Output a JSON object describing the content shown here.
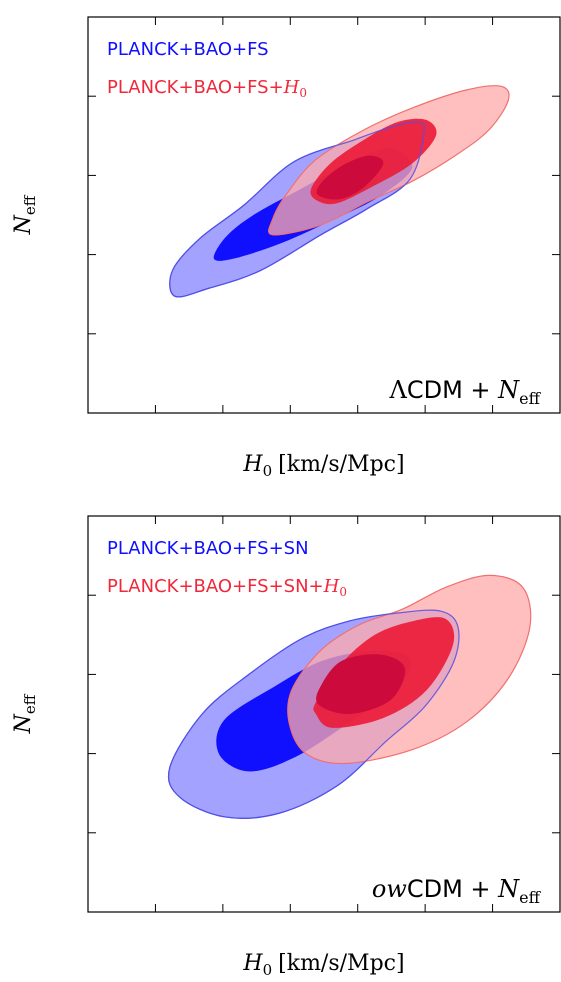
{
  "colors": {
    "blue_inner": "#1010ff",
    "blue_outer": "#a3a3ff",
    "blue_edge": "#5050e8",
    "red_inner": "#ec1c3a",
    "red_outer": "#ffaaaa",
    "red_edge": "#f07070",
    "overlap_inner": "#cc0a3c",
    "overlap_outer": "#d898b8"
  },
  "chart_data": [
    {
      "type": "contour",
      "panel": "top",
      "annotation": {
        "prefix": "Λ",
        "body": "CDM + ",
        "sym": "N",
        "sub": "eff"
      },
      "xlabel": {
        "sym": "H",
        "sub": "0",
        "unit": "[km/s/Mpc]"
      },
      "ylabel": {
        "sym": "N",
        "sub": "eff"
      },
      "xlim": [
        63.0,
        73.5
      ],
      "ylim": [
        2.0,
        4.0
      ],
      "xticks": [
        "63.0",
        "64.5",
        "66.0",
        "67.5",
        "69.0",
        "70.5",
        "72.0"
      ],
      "yticks": [
        "2.0",
        "2.4",
        "2.8",
        "3.2",
        "3.6",
        "4.0"
      ],
      "legend_placement": "top-left",
      "series": [
        {
          "name": "PLANCK+BAO+FS",
          "name_suffix": "",
          "color_key": "blue",
          "center": [
            67.68,
            3.1
          ],
          "outer_68": [
            [
              66.07,
              2.89
            ],
            [
              65.8,
              2.78
            ],
            [
              66.25,
              2.78
            ],
            [
              67.32,
              2.86
            ],
            [
              68.39,
              2.97
            ],
            [
              69.46,
              3.09
            ],
            [
              70.21,
              3.24
            ],
            [
              69.68,
              3.34
            ],
            [
              68.72,
              3.25
            ],
            [
              67.64,
              3.12
            ],
            [
              66.68,
              3.0
            ]
          ],
          "outer_95": [
            [
              64.88,
              2.72
            ],
            [
              64.93,
              2.59
            ],
            [
              65.69,
              2.63
            ],
            [
              66.84,
              2.72
            ],
            [
              68.18,
              2.9
            ],
            [
              69.2,
              3.03
            ],
            [
              70.16,
              3.18
            ],
            [
              70.48,
              3.42
            ],
            [
              70.32,
              3.47
            ],
            [
              69.68,
              3.44
            ],
            [
              68.93,
              3.38
            ],
            [
              67.59,
              3.27
            ],
            [
              66.47,
              3.05
            ],
            [
              65.48,
              2.88
            ]
          ]
        },
        {
          "name": "PLANCK+BAO+FS+",
          "name_suffix": "H0",
          "color_key": "red",
          "center": [
            69.14,
            3.22
          ],
          "outer_68": [
            [
              68.12,
              3.07
            ],
            [
              68.55,
              3.06
            ],
            [
              69.3,
              3.14
            ],
            [
              70.21,
              3.26
            ],
            [
              70.74,
              3.4
            ],
            [
              70.53,
              3.48
            ],
            [
              69.89,
              3.47
            ],
            [
              69.14,
              3.38
            ],
            [
              68.39,
              3.26
            ],
            [
              67.96,
              3.13
            ]
          ],
          "outer_95": [
            [
              67.11,
              2.9
            ],
            [
              68.18,
              2.95
            ],
            [
              69.25,
              3.07
            ],
            [
              70.21,
              3.17
            ],
            [
              71.17,
              3.3
            ],
            [
              71.92,
              3.43
            ],
            [
              72.35,
              3.58
            ],
            [
              72.19,
              3.65
            ],
            [
              71.39,
              3.63
            ],
            [
              70.21,
              3.54
            ],
            [
              69.14,
              3.43
            ],
            [
              68.07,
              3.28
            ],
            [
              67.43,
              3.11
            ],
            [
              67.11,
              2.98
            ]
          ]
        }
      ],
      "overlap_inner": [
        [
          68.12,
          3.1
        ],
        [
          68.61,
          3.08
        ],
        [
          69.14,
          3.14
        ],
        [
          69.57,
          3.26
        ],
        [
          69.25,
          3.3
        ],
        [
          68.66,
          3.25
        ],
        [
          68.18,
          3.16
        ]
      ]
    },
    {
      "type": "contour",
      "panel": "bottom",
      "annotation": {
        "prefix": "ow",
        "body": "CDM + ",
        "sym": "N",
        "sub": "eff"
      },
      "xlabel": {
        "sym": "H",
        "sub": "0",
        "unit": "[km/s/Mpc]"
      },
      "ylabel": {
        "sym": "N",
        "sub": "eff"
      },
      "xlim": [
        63.0,
        73.5
      ],
      "ylim": [
        2.0,
        4.0
      ],
      "xticks": [
        "63.0",
        "64.5",
        "66.0",
        "67.5",
        "69.0",
        "70.5",
        "72.0"
      ],
      "yticks": [
        "2.0",
        "2.4",
        "2.8",
        "3.2",
        "3.6",
        "4.0"
      ],
      "legend_placement": "top-left",
      "series": [
        {
          "name": "PLANCK+BAO+FS+SN",
          "name_suffix": "",
          "color_key": "blue",
          "center": [
            67.43,
            3.02
          ],
          "outer_68": [
            [
              66.03,
              2.97
            ],
            [
              65.91,
              2.8
            ],
            [
              66.57,
              2.71
            ],
            [
              67.59,
              2.78
            ],
            [
              68.77,
              2.95
            ],
            [
              69.89,
              3.13
            ],
            [
              70.16,
              3.28
            ],
            [
              69.41,
              3.32
            ],
            [
              68.23,
              3.27
            ],
            [
              67.16,
              3.14
            ]
          ],
          "outer_95": [
            [
              64.82,
              2.73
            ],
            [
              65.04,
              2.58
            ],
            [
              66.05,
              2.48
            ],
            [
              67.27,
              2.5
            ],
            [
              68.56,
              2.64
            ],
            [
              69.62,
              2.86
            ],
            [
              70.5,
              3.04
            ],
            [
              71.13,
              3.26
            ],
            [
              71.23,
              3.44
            ],
            [
              70.84,
              3.52
            ],
            [
              69.89,
              3.51
            ],
            [
              68.82,
              3.47
            ],
            [
              67.75,
              3.38
            ],
            [
              66.58,
              3.2
            ],
            [
              65.54,
              3.0
            ]
          ]
        },
        {
          "name": "PLANCK+BAO+FS+SN+",
          "name_suffix": "H0",
          "color_key": "red",
          "center": [
            69.41,
            3.14
          ],
          "outer_68": [
            [
              68.07,
              3.0
            ],
            [
              68.44,
              2.93
            ],
            [
              69.57,
              2.98
            ],
            [
              70.53,
              3.12
            ],
            [
              71.12,
              3.35
            ],
            [
              70.96,
              3.48
            ],
            [
              70.24,
              3.47
            ],
            [
              69.38,
              3.4
            ],
            [
              68.62,
              3.25
            ],
            [
              68.07,
              3.06
            ]
          ],
          "outer_95": [
            [
              67.48,
              2.95
            ],
            [
              67.85,
              2.8
            ],
            [
              68.72,
              2.75
            ],
            [
              70.21,
              2.82
            ],
            [
              71.42,
              2.96
            ],
            [
              72.35,
              3.18
            ],
            [
              72.83,
              3.44
            ],
            [
              72.67,
              3.64
            ],
            [
              71.92,
              3.7
            ],
            [
              70.96,
              3.64
            ],
            [
              70.0,
              3.53
            ],
            [
              69.03,
              3.45
            ],
            [
              68.17,
              3.32
            ],
            [
              67.53,
              3.12
            ]
          ]
        }
      ],
      "overlap_inner": [
        [
          68.12,
          3.05
        ],
        [
          68.82,
          3.0
        ],
        [
          69.73,
          3.07
        ],
        [
          70.05,
          3.23
        ],
        [
          69.52,
          3.3
        ],
        [
          68.66,
          3.27
        ],
        [
          68.2,
          3.15
        ]
      ]
    }
  ]
}
